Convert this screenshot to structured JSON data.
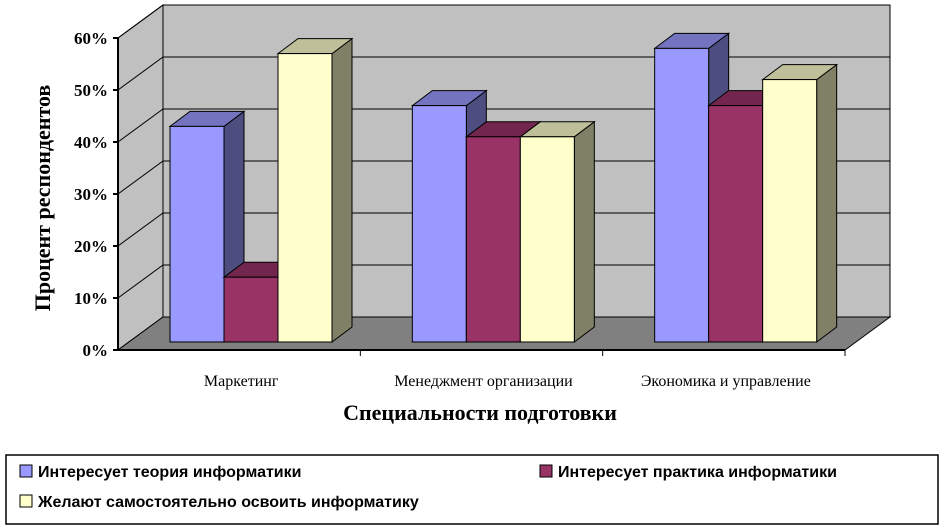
{
  "chart_data": {
    "type": "bar",
    "categories": [
      "Маркетинг",
      "Менеджмент организации",
      "Экономика и управление"
    ],
    "series": [
      {
        "name": "Интересует теория информатики",
        "values": [
          43,
          47,
          58
        ],
        "color": "#9999ff"
      },
      {
        "name": "Интересует практика информатики",
        "values": [
          14,
          41,
          47
        ],
        "color": "#993366"
      },
      {
        "name": "Желают самостоятельно освоить информатику",
        "values": [
          57,
          41,
          52
        ],
        "color": "#ffffcc"
      }
    ],
    "xlabel": "Специальности подготовки",
    "ylabel": "Процент респондентов",
    "yticks": [
      "0%",
      "10%",
      "20%",
      "30%",
      "40%",
      "50%",
      "60%"
    ],
    "ylim": [
      0,
      60
    ],
    "grid": true,
    "three_d": true,
    "wall_color": "#c0c0c0",
    "floor_color": "#808080",
    "legend_position": "bottom"
  }
}
